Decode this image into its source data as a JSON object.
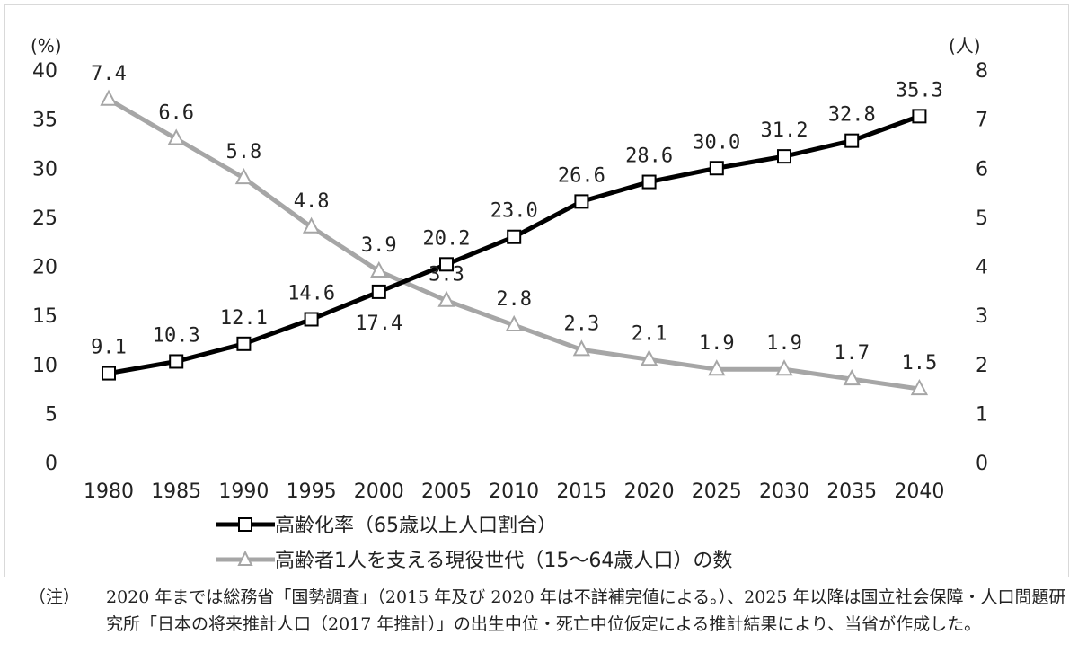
{
  "chart_data": {
    "type": "line",
    "categories": [
      "1980",
      "1985",
      "1990",
      "1995",
      "2000",
      "2005",
      "2010",
      "2015",
      "2020",
      "2025",
      "2030",
      "2035",
      "2040"
    ],
    "y_left": {
      "unit": "(%)",
      "ticks": [
        "0",
        "5",
        "10",
        "15",
        "20",
        "25",
        "30",
        "35",
        "40"
      ],
      "ylim": [
        0,
        40
      ]
    },
    "y_right": {
      "unit": "(人)",
      "ticks": [
        "0",
        "1",
        "2",
        "3",
        "4",
        "5",
        "6",
        "7",
        "8"
      ],
      "ylim": [
        0,
        8
      ]
    },
    "series": [
      {
        "name": "高齢化率（65歳以上人口割合）",
        "axis": "left",
        "color": "#000000",
        "marker": "square",
        "values": [
          9.1,
          10.3,
          12.1,
          14.6,
          17.4,
          20.2,
          23.0,
          26.6,
          28.6,
          30.0,
          31.2,
          32.8,
          35.3
        ],
        "labels": [
          "9.1",
          "10.3",
          "12.1",
          "14.6",
          "17.4",
          "20.2",
          "23.0",
          "26.6",
          "28.6",
          "30.0",
          "31.2",
          "32.8",
          "35.3"
        ]
      },
      {
        "name": "高齢者1人を支える現役世代（15〜64歳人口）の数",
        "axis": "right",
        "color": "#a6a6a6",
        "marker": "triangle",
        "values": [
          7.4,
          6.6,
          5.8,
          4.8,
          3.9,
          3.3,
          2.8,
          2.3,
          2.1,
          1.9,
          1.9,
          1.7,
          1.5
        ],
        "labels": [
          "7.4",
          "6.6",
          "5.8",
          "4.8",
          "3.9",
          "3.3",
          "2.8",
          "2.3",
          "2.1",
          "1.9",
          "1.9",
          "1.7",
          "1.5"
        ]
      }
    ],
    "grid": false,
    "legend_position": "bottom"
  },
  "note": {
    "label": "（注）",
    "text": "2020 年までは総務省「国勢調査」（2015 年及び 2020 年は不詳補完値による。）、2025 年以降は国立社会保障・人口問題研究所「日本の将来推計人口（2017 年推計）」の出生中位・死亡中位仮定による推計結果により、当省が作成した。"
  }
}
